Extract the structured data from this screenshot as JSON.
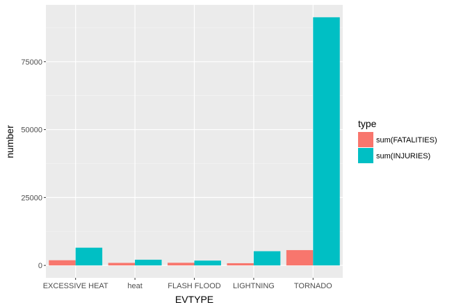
{
  "chart_data": {
    "type": "bar",
    "title": "",
    "xlabel": "EVTYPE",
    "ylabel": "number",
    "categories": [
      "EXCESSIVE HEAT",
      "heat",
      "FLASH FLOOD",
      "LIGHTNING",
      "TORNADO"
    ],
    "series": [
      {
        "name": "sum(FATALITIES)",
        "color": "#f8766d",
        "values": [
          1903,
          937,
          978,
          816,
          5633
        ]
      },
      {
        "name": "sum(INJURIES)",
        "color": "#00bfc4",
        "values": [
          6525,
          2100,
          1777,
          5230,
          91346
        ]
      }
    ],
    "yticks": [
      0,
      25000,
      50000,
      75000
    ],
    "ytick_labels": [
      "0",
      "25000",
      "50000",
      "75000"
    ],
    "ylim": [
      -4567,
      95913
    ],
    "grid": true,
    "legend": {
      "title": "type",
      "position": "right"
    }
  }
}
